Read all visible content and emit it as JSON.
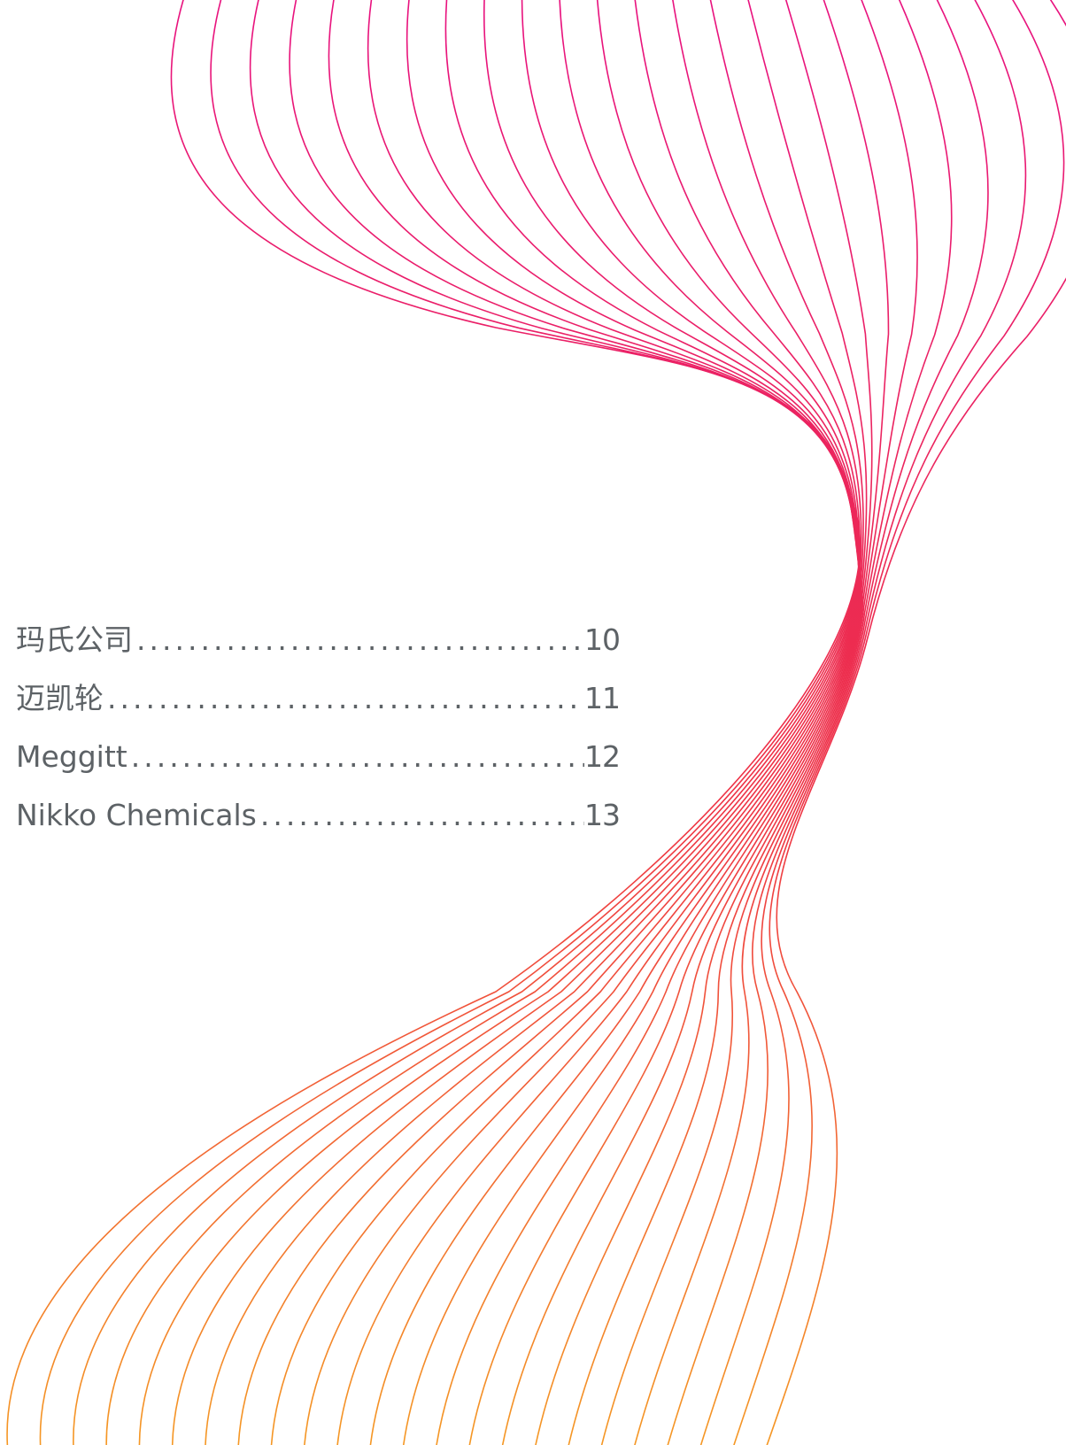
{
  "toc": {
    "entries": [
      {
        "title": "玛氏公司",
        "page": "10"
      },
      {
        "title": "迈凯轮",
        "page": "11"
      },
      {
        "title": "Meggitt",
        "page": "12"
      },
      {
        "title": "Nikko Chemicals",
        "page": "13"
      }
    ]
  },
  "decoration": {
    "line_color_top": "#e8117f",
    "line_color_mid": "#ee3345",
    "line_color_bottom": "#f59a23"
  }
}
